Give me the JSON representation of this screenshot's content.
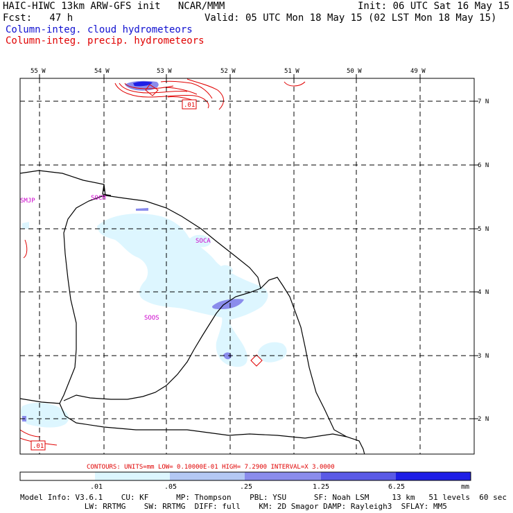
{
  "header": {
    "title_left": "HAIC-HIWC 13km ARW-GFS init   NCAR/MMM",
    "init": "Init: 06 UTC Sat 16 May 15",
    "fcst": "Fcst:   47 h",
    "valid": "Valid: 05 UTC Mon 18 May 15 (02 LST Mon 18 May 15)",
    "field_cloud": "Column-integ. cloud hydrometeors",
    "field_precip": "Column-integ. precip. hydrometeors"
  },
  "colors": {
    "cloud_line": "#1010d0",
    "precip_line": "#e00000",
    "station_label": "#cc00cc",
    "shade_1": "#ddf6ff",
    "shade_2": "#b4c8f4",
    "shade_3": "#8a8cec",
    "shade_4": "#5a5ae6",
    "shade_5": "#1e1ee6"
  },
  "map": {
    "lon_labels": [
      "55 W",
      "54 W",
      "53 W",
      "52 W",
      "51 W",
      "50 W",
      "49 W"
    ],
    "lat_labels": [
      "7 N",
      "6 N",
      "5 N",
      "4 N",
      "3 N",
      "2 N"
    ],
    "stations": [
      "SMJP",
      "SOCM",
      "SOCA",
      "SOOS"
    ],
    "contour_labels": [
      ".01",
      ".01"
    ]
  },
  "legend": {
    "contours_line": "CONTOURS:  UNITS=mm  LOW= 0.10000E-01  HIGH=  7.2900     INTERVAL=X  3.0000",
    "ticks": [
      ".01",
      ".05",
      ".25",
      "1.25",
      "6.25"
    ],
    "units": "mm"
  },
  "model_info": {
    "line1": "Model Info: V3.6.1    CU: KF      MP: Thompson    PBL: YSU      SF: Noah LSM     13 km   51 levels  60 sec",
    "line2": "              LW: RRTMG    SW: RRTMG  DIFF: full    KM: 2D Smagor DAMP: Rayleigh3  SFLAY: MM5"
  }
}
